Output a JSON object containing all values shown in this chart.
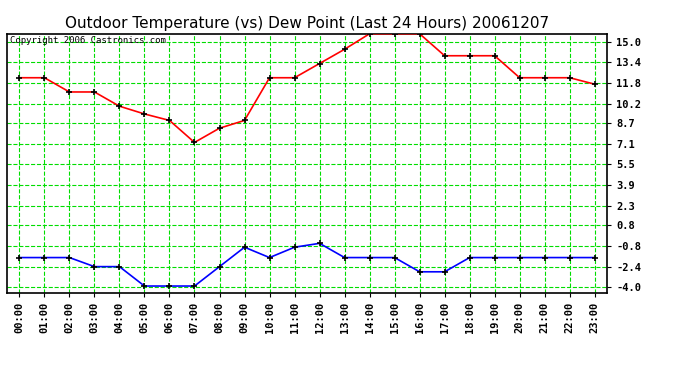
{
  "title": "Outdoor Temperature (vs) Dew Point (Last 24 Hours) 20061207",
  "copyright": "Copyright 2006 Castronics.com",
  "background_color": "#ffffff",
  "plot_bg_color": "#ffffff",
  "grid_color": "#00dd00",
  "hours": [
    "00:00",
    "01:00",
    "02:00",
    "03:00",
    "04:00",
    "05:00",
    "06:00",
    "07:00",
    "08:00",
    "09:00",
    "10:00",
    "11:00",
    "12:00",
    "13:00",
    "14:00",
    "15:00",
    "16:00",
    "17:00",
    "18:00",
    "19:00",
    "20:00",
    "21:00",
    "22:00",
    "23:00"
  ],
  "temp_values": [
    12.2,
    12.2,
    11.1,
    11.1,
    10.0,
    9.4,
    8.9,
    7.2,
    8.3,
    8.9,
    12.2,
    12.2,
    13.3,
    14.4,
    15.6,
    15.6,
    15.6,
    13.9,
    13.9,
    13.9,
    12.2,
    12.2,
    12.2,
    11.7
  ],
  "dew_values": [
    -1.7,
    -1.7,
    -1.7,
    -2.4,
    -2.4,
    -3.9,
    -3.9,
    -3.9,
    -2.4,
    -0.9,
    -1.7,
    -0.9,
    -0.6,
    -1.7,
    -1.7,
    -1.7,
    -2.8,
    -2.8,
    -1.7,
    -1.7,
    -1.7,
    -1.7,
    -1.7,
    -1.7
  ],
  "temp_color": "#ff0000",
  "dew_color": "#0000ff",
  "marker": "+",
  "markersize": 5,
  "linewidth": 1.2,
  "yticks": [
    15.0,
    13.4,
    11.8,
    10.2,
    8.7,
    7.1,
    5.5,
    3.9,
    2.3,
    0.8,
    -0.8,
    -2.4,
    -4.0
  ],
  "ylim": [
    -4.4,
    15.6
  ],
  "border_color": "#000000",
  "title_fontsize": 11,
  "tick_fontsize": 7.5,
  "fig_width": 6.9,
  "fig_height": 3.75,
  "dpi": 100
}
